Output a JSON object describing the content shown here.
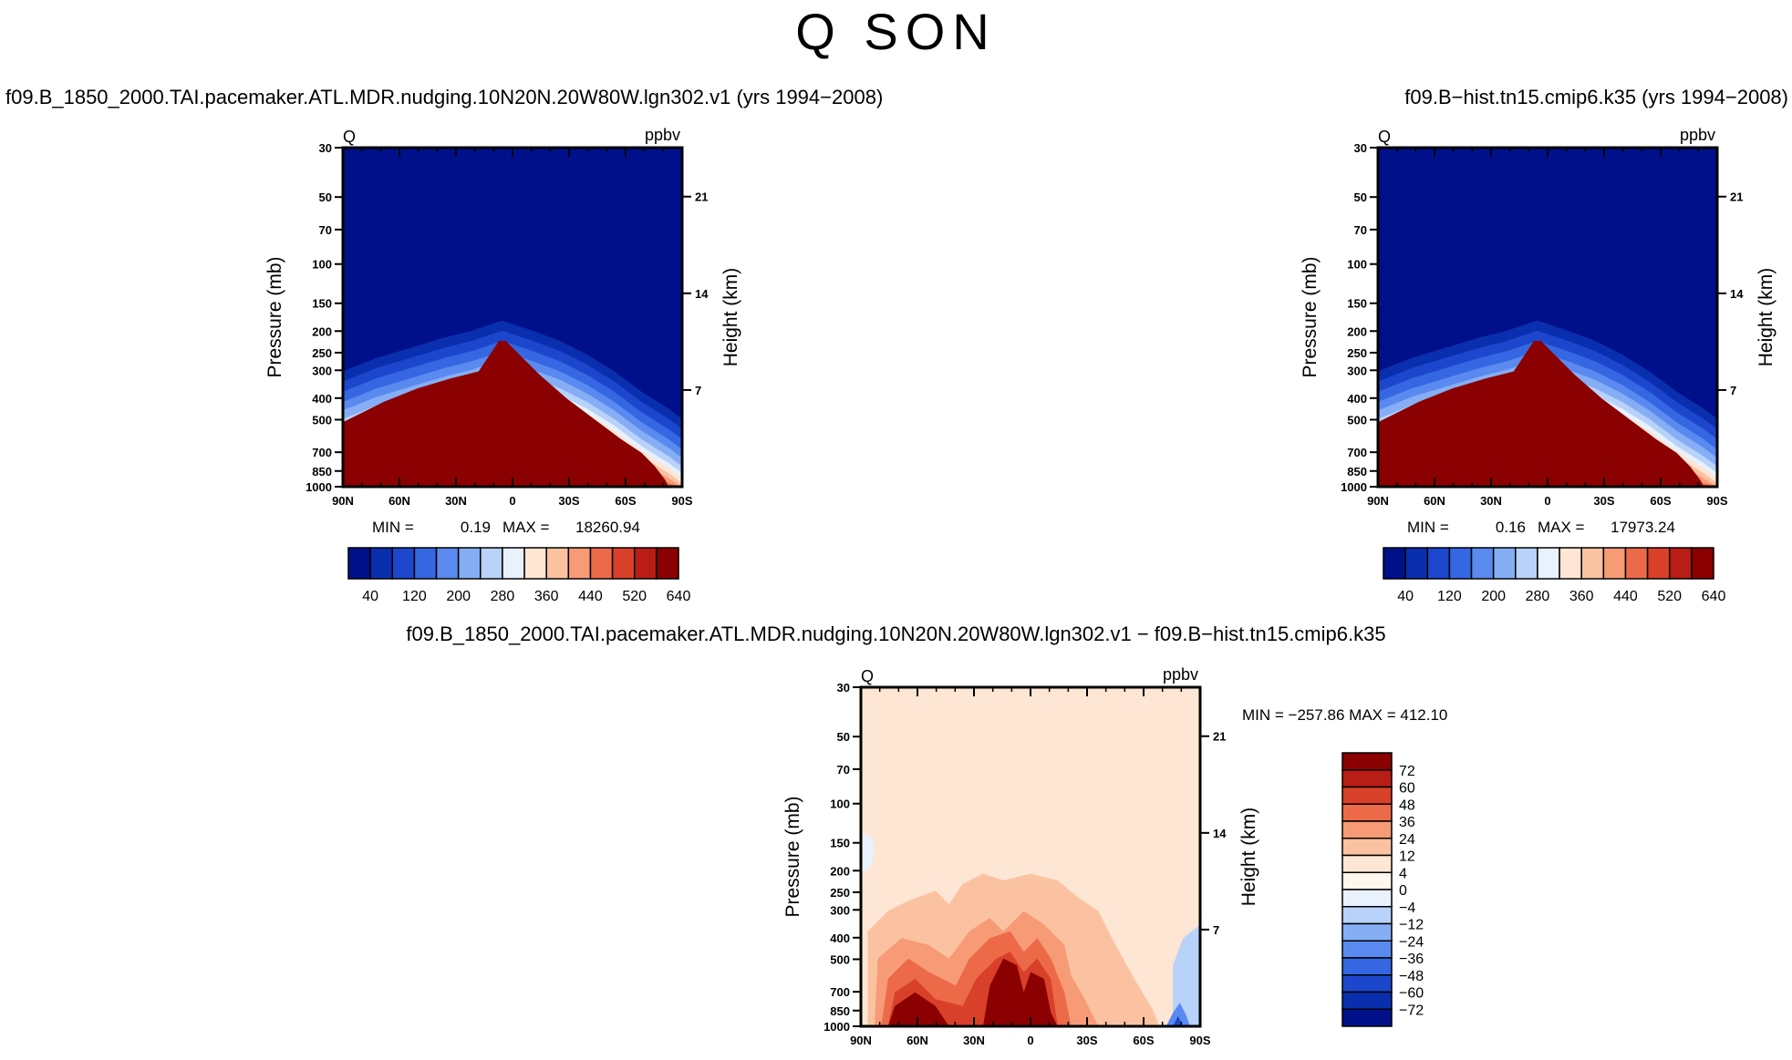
{
  "title": "Q  SON",
  "colors": {
    "dark_red": "#8b0000",
    "dark_blue": "#00108a",
    "cream": "#fde6d4"
  },
  "chart_data": [
    {
      "type": "heatmap",
      "title": "f09.B_1850_2000.TAI.pacemaker.ATL.MDR.nudging.10N20N.20W80W.lgn302.v1 (yrs 1994−2008)",
      "left_label": "Q",
      "right_label": "ppbv",
      "ylabel": "Pressure (mb)",
      "y2label": "Height (km)",
      "x_ticks": [
        "90N",
        "60N",
        "30N",
        "0",
        "30S",
        "60S",
        "90S"
      ],
      "y_ticks": [
        "30",
        "50",
        "70",
        "100",
        "150",
        "200",
        "250",
        "300",
        "400",
        "500",
        "700",
        "850",
        "1000"
      ],
      "y2_ticks": [
        "21",
        "14",
        "7"
      ],
      "min_label": "MIN =",
      "min_value": "0.19",
      "max_label": "MAX =",
      "max_value": "18260.94",
      "colorbar_levels": [
        "40",
        "120",
        "200",
        "280",
        "360",
        "440",
        "520",
        "640"
      ]
    },
    {
      "type": "heatmap",
      "title": "f09.B−hist.tn15.cmip6.k35 (yrs 1994−2008)",
      "left_label": "Q",
      "right_label": "ppbv",
      "ylabel": "Pressure (mb)",
      "y2label": "Height (km)",
      "x_ticks": [
        "90N",
        "60N",
        "30N",
        "0",
        "30S",
        "60S",
        "90S"
      ],
      "y_ticks": [
        "30",
        "50",
        "70",
        "100",
        "150",
        "200",
        "250",
        "300",
        "400",
        "500",
        "700",
        "850",
        "1000"
      ],
      "y2_ticks": [
        "21",
        "14",
        "7"
      ],
      "min_label": "MIN =",
      "min_value": "0.16",
      "max_label": "MAX =",
      "max_value": "17973.24",
      "colorbar_levels": [
        "40",
        "120",
        "200",
        "280",
        "360",
        "440",
        "520",
        "640"
      ]
    },
    {
      "type": "heatmap",
      "title": "f09.B_1850_2000.TAI.pacemaker.ATL.MDR.nudging.10N20N.20W80W.lgn302.v1  −  f09.B−hist.tn15.cmip6.k35",
      "left_label": "Q",
      "right_label": "ppbv",
      "ylabel": "Pressure (mb)",
      "y2label": "Height (km)",
      "x_ticks": [
        "90N",
        "60N",
        "30N",
        "0",
        "30S",
        "60S",
        "90S"
      ],
      "y_ticks": [
        "30",
        "50",
        "70",
        "100",
        "150",
        "200",
        "250",
        "300",
        "400",
        "500",
        "700",
        "850",
        "1000"
      ],
      "y2_ticks": [
        "21",
        "14",
        "7"
      ],
      "minmax_text": "MIN = −257.86   MAX = 412.10",
      "colorbar_levels": [
        "72",
        "60",
        "48",
        "36",
        "24",
        "12",
        "4",
        "0",
        "−4",
        "−12",
        "−24",
        "−36",
        "−48",
        "−60",
        "−72"
      ]
    }
  ]
}
